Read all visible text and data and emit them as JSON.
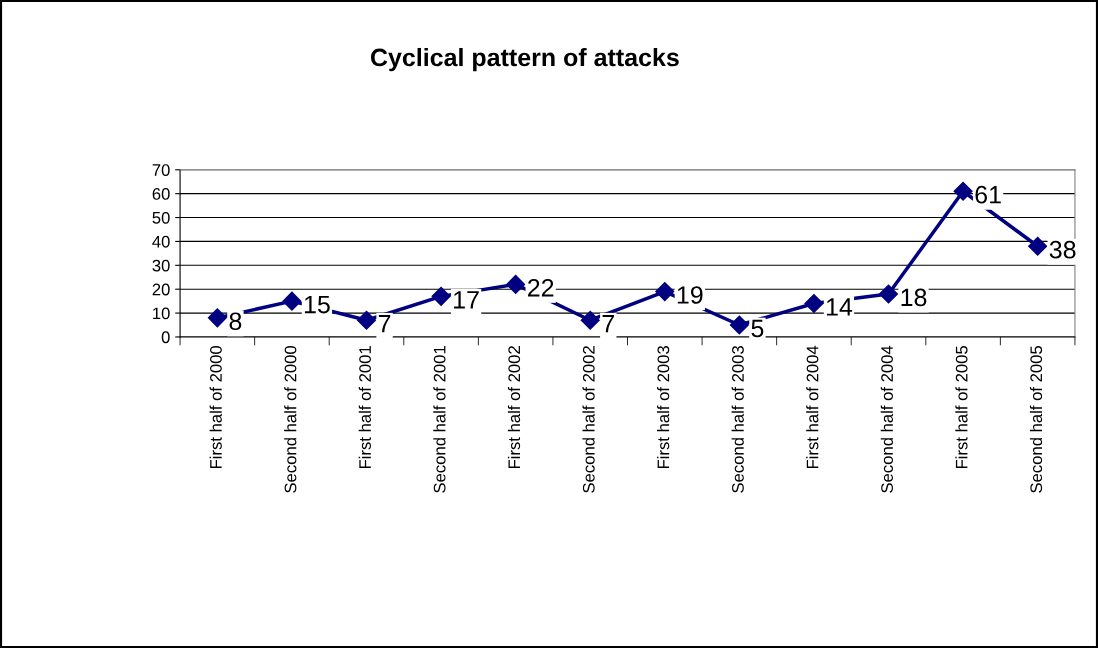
{
  "chart_data": {
    "type": "line",
    "title": "Cyclical pattern of attacks",
    "categories": [
      "First half of 2000",
      "Second half of 2000",
      "First half of 2001",
      "Second half of 2001",
      "First half of 2002",
      "Second half of 2002",
      "First half of 2003",
      "Second half of 2003",
      "First half of 2004",
      "Second half of 2004",
      "First half of 2005",
      "Second half of 2005"
    ],
    "series": [
      {
        "color": "#000080",
        "values": [
          8,
          15,
          7,
          17,
          22,
          7,
          19,
          5,
          14,
          18,
          61,
          38
        ]
      }
    ],
    "ylim": [
      0,
      70
    ],
    "yticks": [
      0,
      10,
      20,
      30,
      40,
      50,
      60,
      70
    ],
    "grid": "y",
    "marker": "diamond",
    "line_style": "solid",
    "data_labels": true
  }
}
